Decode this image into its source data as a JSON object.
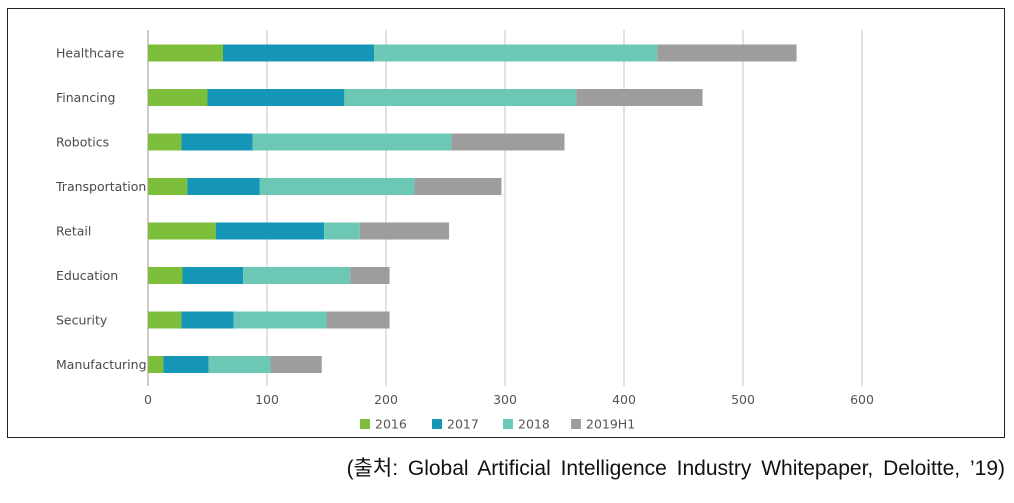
{
  "caption": "(출처: Global Artificial Intelligence Industry Whitepaper, Deloitte, ’19)",
  "chart_data": {
    "type": "bar",
    "orientation": "horizontal",
    "stacked": true,
    "title": "",
    "xlabel": "",
    "ylabel": "",
    "categories": [
      "Healthcare",
      "Financing",
      "Robotics",
      "Transportation",
      "Retail",
      "Education",
      "Security",
      "Manufacturing"
    ],
    "series": [
      {
        "name": "2016",
        "color": "#7dbf3b",
        "values": [
          63,
          50,
          28,
          33,
          57,
          29,
          28,
          13
        ]
      },
      {
        "name": "2017",
        "color": "#1596b6",
        "values": [
          127,
          115,
          60,
          61,
          91,
          51,
          44,
          38
        ]
      },
      {
        "name": "2018",
        "color": "#6cc8b5",
        "values": [
          238,
          195,
          167,
          130,
          30,
          90,
          78,
          52
        ]
      },
      {
        "name": "2019H1",
        "color": "#9d9d9d",
        "values": [
          117,
          106,
          95,
          73,
          75,
          33,
          53,
          43
        ]
      }
    ],
    "xlim": [
      0,
      600
    ],
    "xticks": [
      "0",
      "100",
      "200",
      "300",
      "400",
      "500",
      "600"
    ],
    "grid": "vertical",
    "legend": "bottom"
  }
}
